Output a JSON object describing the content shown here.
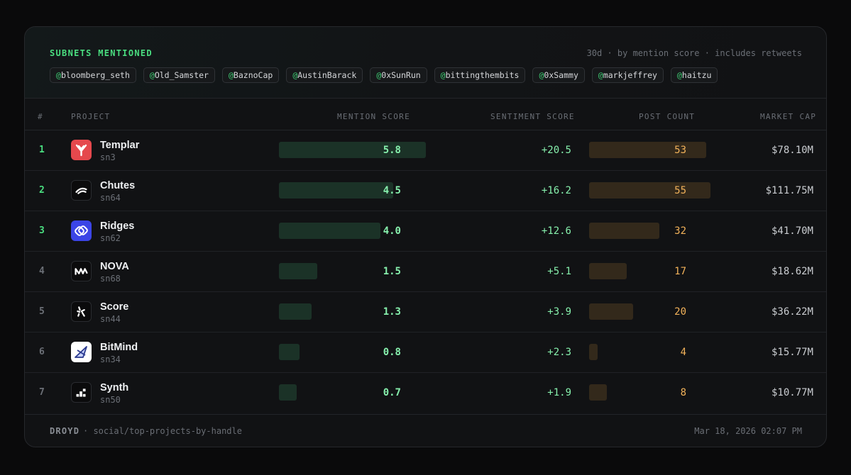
{
  "header": {
    "title": "SUBNETS MENTIONED",
    "meta": "30d · by mention score · includes retweets",
    "handles": [
      "bloomberg_seth",
      "Old_Samster",
      "BaznoCap",
      "AustinBarack",
      "0xSunRun",
      "bittingthembits",
      "0xSammy",
      "markjeffrey",
      "haitzu"
    ]
  },
  "columns": {
    "rank": "#",
    "project": "PROJECT",
    "mention": "MENTION SCORE",
    "sentiment": "SENTIMENT SCORE",
    "posts": "POST COUNT",
    "cap": "MARKET CAP"
  },
  "colors": {
    "accent": "#4ade80",
    "top_rank": "#4ade80",
    "rank": "#6b6f76",
    "mention_bar": "#1b3227",
    "post_bar": "#33291b"
  },
  "rows": [
    {
      "rank": "1",
      "name": "Templar",
      "subnet": "sn3",
      "icon": "templar-logo",
      "mention": 5.8,
      "mention_label": "5.8",
      "sentiment": "+20.5",
      "posts": 53,
      "posts_label": "53",
      "cap": "$78.10M"
    },
    {
      "rank": "2",
      "name": "Chutes",
      "subnet": "sn64",
      "icon": "chutes-logo",
      "mention": 4.5,
      "mention_label": "4.5",
      "sentiment": "+16.2",
      "posts": 55,
      "posts_label": "55",
      "cap": "$111.75M"
    },
    {
      "rank": "3",
      "name": "Ridges",
      "subnet": "sn62",
      "icon": "ridges-logo",
      "mention": 4.0,
      "mention_label": "4.0",
      "sentiment": "+12.6",
      "posts": 32,
      "posts_label": "32",
      "cap": "$41.70M"
    },
    {
      "rank": "4",
      "name": "NOVA",
      "subnet": "sn68",
      "icon": "nova-logo",
      "mention": 1.5,
      "mention_label": "1.5",
      "sentiment": "+5.1",
      "posts": 17,
      "posts_label": "17",
      "cap": "$18.62M"
    },
    {
      "rank": "5",
      "name": "Score",
      "subnet": "sn44",
      "icon": "score-logo",
      "mention": 1.3,
      "mention_label": "1.3",
      "sentiment": "+3.9",
      "posts": 20,
      "posts_label": "20",
      "cap": "$36.22M"
    },
    {
      "rank": "6",
      "name": "BitMind",
      "subnet": "sn34",
      "icon": "bitmind-logo",
      "mention": 0.8,
      "mention_label": "0.8",
      "sentiment": "+2.3",
      "posts": 4,
      "posts_label": "4",
      "cap": "$15.77M"
    },
    {
      "rank": "7",
      "name": "Synth",
      "subnet": "sn50",
      "icon": "synth-logo",
      "mention": 0.7,
      "mention_label": "0.7",
      "sentiment": "+1.9",
      "posts": 8,
      "posts_label": "8",
      "cap": "$10.77M"
    }
  ],
  "scale": {
    "mention_max": 5.8,
    "posts_max": 55
  },
  "footer": {
    "brand": "DROYD",
    "path": "· social/top-projects-by-handle",
    "timestamp": "Mar 18, 2026 02:07 PM"
  }
}
